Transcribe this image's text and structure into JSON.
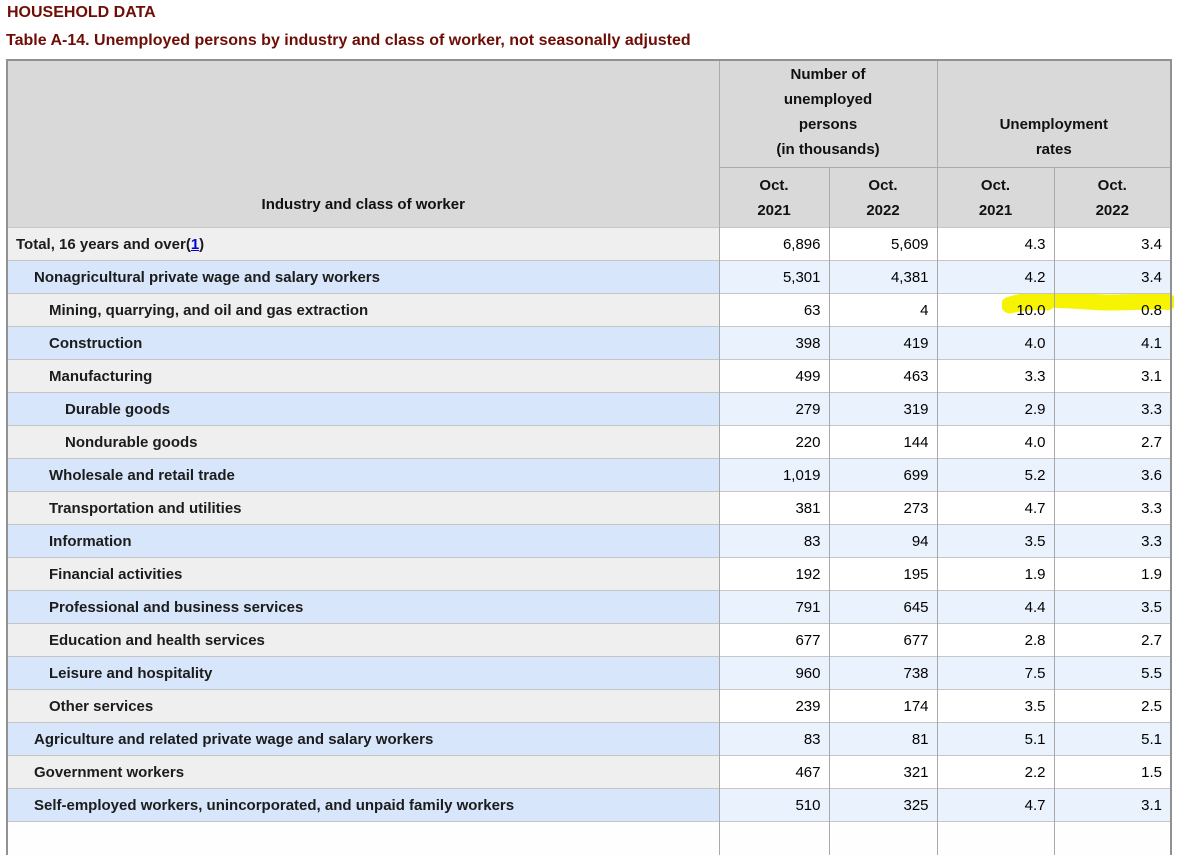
{
  "header": {
    "kicker": "HOUSEHOLD DATA",
    "title": "Table A-14. Unemployed persons by industry and class of worker, not seasonally adjusted"
  },
  "table": {
    "label_header": "Industry and class of worker",
    "group_headers": [
      "Number of\nunemployed\npersons\n(in thousands)",
      "Unemployment\nrates"
    ],
    "sub_headers": [
      "Oct.\n2021",
      "Oct.\n2022",
      "Oct.\n2021",
      "Oct.\n2022"
    ],
    "rows": [
      {
        "label": "Total, 16 years and over",
        "footnote": "1",
        "indent": 0,
        "values": [
          "6,896",
          "5,609",
          "4.3",
          "3.4"
        ]
      },
      {
        "label": "Nonagricultural private wage and salary workers",
        "indent": 1,
        "values": [
          "5,301",
          "4,381",
          "4.2",
          "3.4"
        ]
      },
      {
        "label": "Mining, quarrying, and oil and gas extraction",
        "indent": 2,
        "values": [
          "63",
          "4",
          "10.0",
          "0.8"
        ],
        "highlight": [
          2,
          3
        ]
      },
      {
        "label": "Construction",
        "indent": 2,
        "values": [
          "398",
          "419",
          "4.0",
          "4.1"
        ]
      },
      {
        "label": "Manufacturing",
        "indent": 2,
        "values": [
          "499",
          "463",
          "3.3",
          "3.1"
        ]
      },
      {
        "label": "Durable goods",
        "indent": 3,
        "values": [
          "279",
          "319",
          "2.9",
          "3.3"
        ]
      },
      {
        "label": "Nondurable goods",
        "indent": 3,
        "values": [
          "220",
          "144",
          "4.0",
          "2.7"
        ]
      },
      {
        "label": "Wholesale and retail trade",
        "indent": 2,
        "values": [
          "1,019",
          "699",
          "5.2",
          "3.6"
        ]
      },
      {
        "label": "Transportation and utilities",
        "indent": 2,
        "values": [
          "381",
          "273",
          "4.7",
          "3.3"
        ]
      },
      {
        "label": "Information",
        "indent": 2,
        "values": [
          "83",
          "94",
          "3.5",
          "3.3"
        ]
      },
      {
        "label": "Financial activities",
        "indent": 2,
        "values": [
          "192",
          "195",
          "1.9",
          "1.9"
        ]
      },
      {
        "label": "Professional and business services",
        "indent": 2,
        "values": [
          "791",
          "645",
          "4.4",
          "3.5"
        ]
      },
      {
        "label": "Education and health services",
        "indent": 2,
        "values": [
          "677",
          "677",
          "2.8",
          "2.7"
        ]
      },
      {
        "label": "Leisure and hospitality",
        "indent": 2,
        "values": [
          "960",
          "738",
          "7.5",
          "5.5"
        ]
      },
      {
        "label": "Other services",
        "indent": 2,
        "values": [
          "239",
          "174",
          "3.5",
          "2.5"
        ]
      },
      {
        "label": "Agriculture and related private wage and salary workers",
        "indent": 1,
        "values": [
          "83",
          "81",
          "5.1",
          "5.1"
        ]
      },
      {
        "label": "Government workers",
        "indent": 1,
        "values": [
          "467",
          "321",
          "2.2",
          "1.5"
        ]
      },
      {
        "label": "Self-employed workers, unincorporated, and unpaid family workers",
        "indent": 1,
        "values": [
          "510",
          "325",
          "4.7",
          "3.1"
        ]
      }
    ]
  },
  "colors": {
    "accent": "#6d0d05",
    "hl": "#f6f303",
    "row-gray": "#efefef",
    "row-blue": "#d7e6fa",
    "num-blue": "#eaf2fd",
    "head-bg": "#d9d9d9"
  }
}
